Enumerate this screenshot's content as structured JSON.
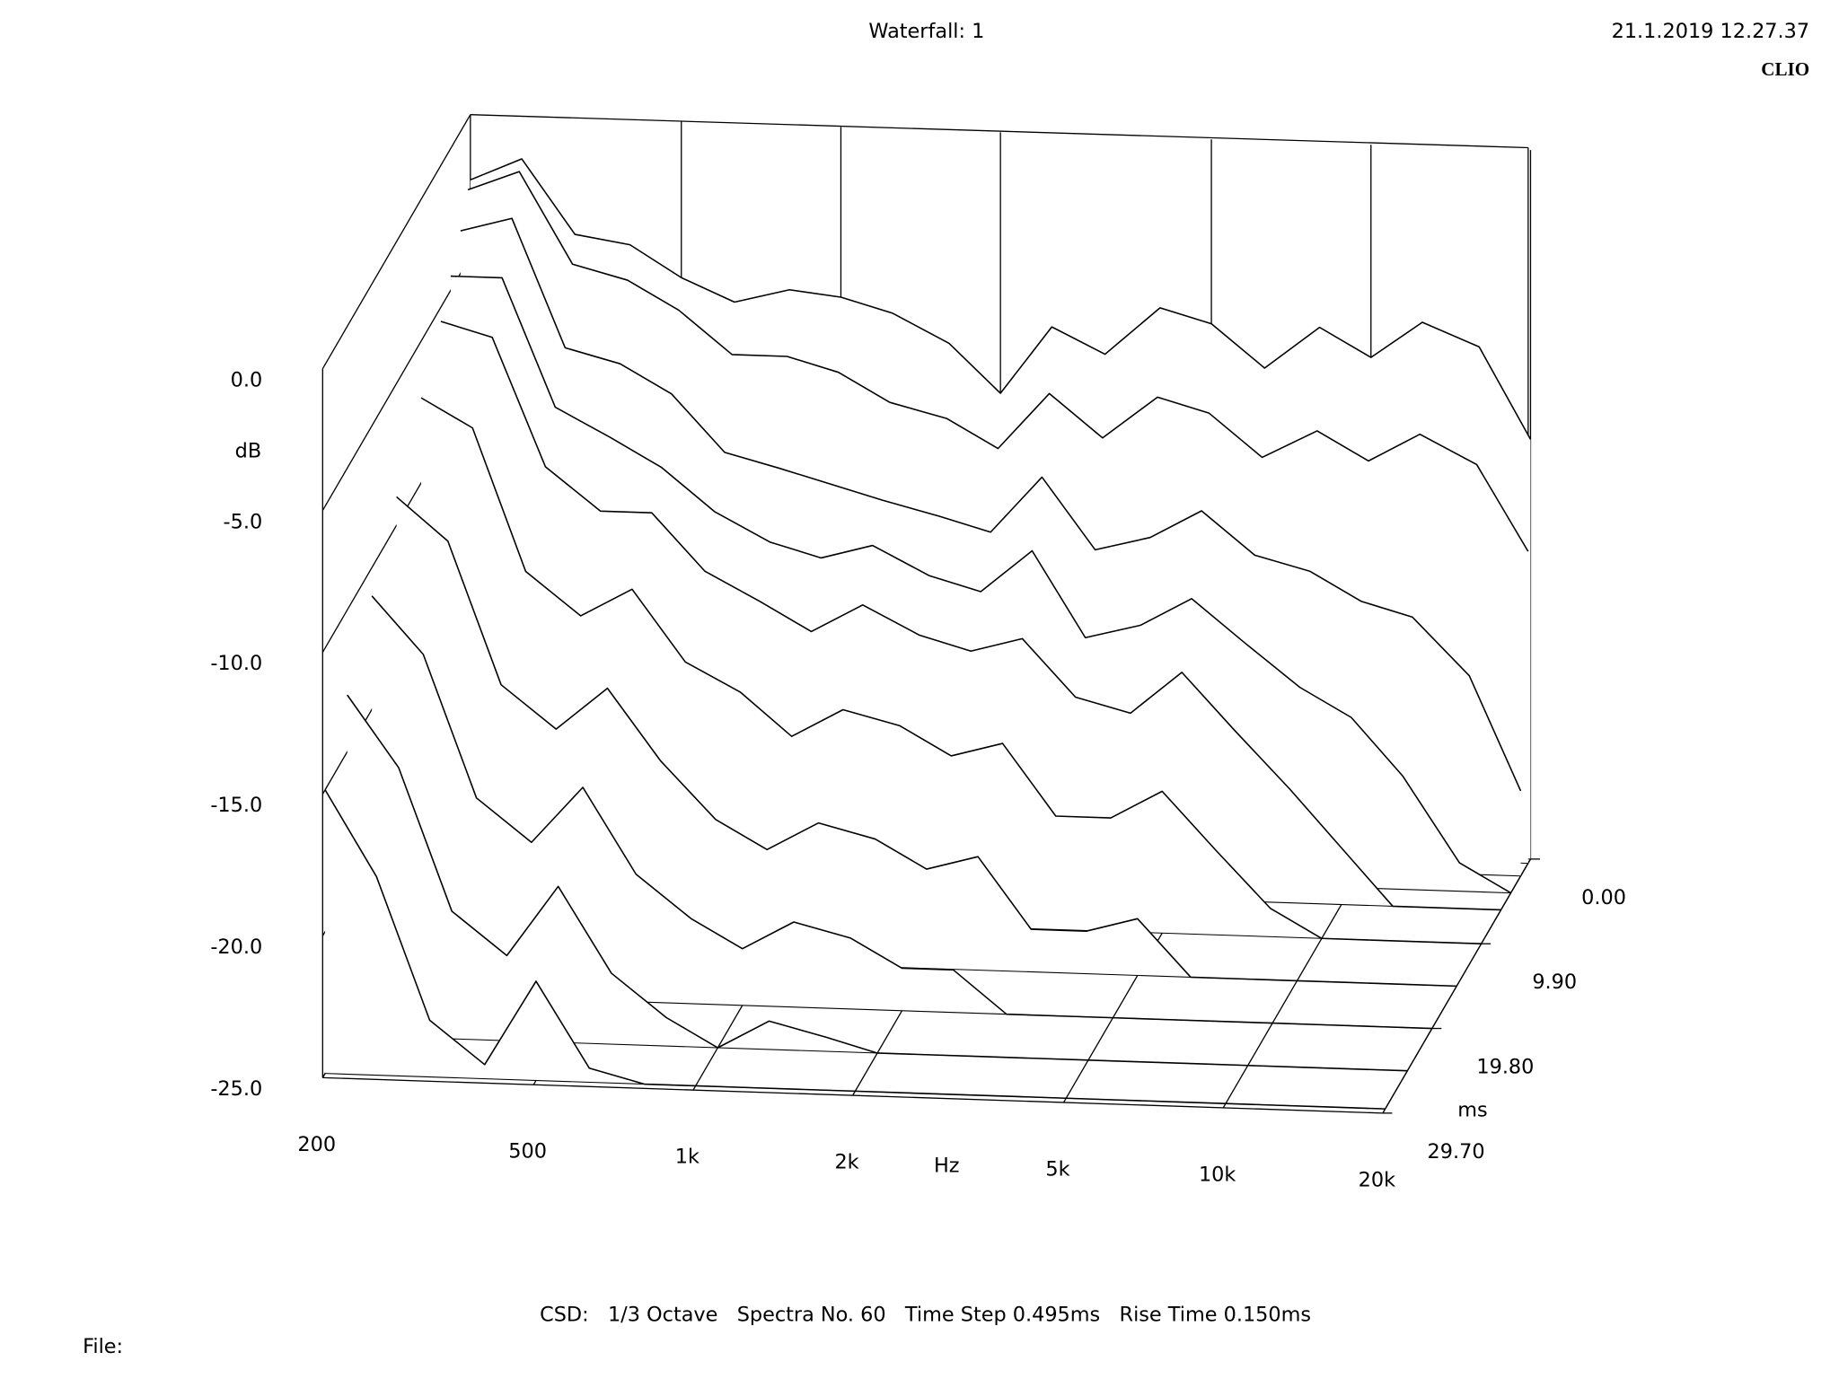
{
  "chart_data": {
    "type": "waterfall",
    "title": "Waterfall: 1",
    "timestamp": "21.1.2019 12.27.37",
    "brand": "CLIO",
    "y_label": "dB",
    "x_label": "Hz",
    "z_label": "ms",
    "footer": "CSD:   1/3 Octave   Spectra No. 60   Time Step 0.495ms   Rise Time 0.150ms",
    "file_label": "File:",
    "xscale": "log",
    "xlim": [
      200,
      20000
    ],
    "xticks": [
      200,
      500,
      {
        "value": 1000,
        "label": "1k"
      },
      {
        "value": 2000,
        "label": "2k"
      },
      {
        "value": 5000,
        "label": "5k"
      },
      {
        "value": 10000,
        "label": "10k"
      },
      {
        "value": 20000,
        "label": "20k"
      }
    ],
    "ylim": [
      -25,
      0
    ],
    "yticks": [
      {
        "value": 0,
        "label": "0.0"
      },
      {
        "value": -5,
        "label": "-5.0"
      },
      {
        "value": -10,
        "label": "-10.0"
      },
      {
        "value": -15,
        "label": "-15.0"
      },
      {
        "value": -20,
        "label": "-20.0"
      },
      {
        "value": -25,
        "label": "-25.0"
      }
    ],
    "zlim": [
      0,
      29.7
    ],
    "zticks": [
      {
        "value": 0,
        "label": "0.00"
      },
      {
        "value": 9.9,
        "label": "9.90"
      },
      {
        "value": 19.8,
        "label": "19.80"
      },
      {
        "value": 29.7,
        "label": "29.70"
      }
    ],
    "x": [
      200,
      250,
      315,
      400,
      500,
      630,
      800,
      1000,
      1250,
      1600,
      2000,
      2500,
      3150,
      4000,
      5000,
      6300,
      8000,
      10000,
      12500,
      16000,
      20000
    ],
    "z": [
      0,
      0.495,
      1.98,
      3.96,
      5.94,
      9.9,
      14.85,
      19.8,
      24.75,
      29.205
    ],
    "color": "#000000",
    "series": [
      {
        "values": [
          -2.3,
          -1.5,
          -4.1,
          -4.4,
          -5.5,
          -6.3,
          -5.8,
          -6.0,
          -6.5,
          -7.5,
          -9.2,
          -6.8,
          -7.7,
          -6.0,
          -6.5,
          -8.0,
          -6.5,
          -7.5,
          -6.2,
          -7.0,
          -10.2
        ]
      },
      {
        "values": [
          -2.5,
          -1.8,
          -5,
          -5.5,
          -6.5,
          -8,
          -8,
          -8.5,
          -9.5,
          -10,
          -11,
          -9,
          -10.5,
          -9,
          -9.5,
          -11,
          -10,
          -11,
          -10,
          -11,
          -14
        ]
      },
      {
        "values": [
          -3.5,
          -3,
          -7.5,
          -8,
          -9,
          -11,
          -11.5,
          -12,
          -12.5,
          -13,
          -13.5,
          -11.5,
          -14,
          -13.5,
          -12.5,
          -14,
          -14.5,
          -15.5,
          -16,
          -18,
          -22
        ]
      },
      {
        "values": [
          -4.5,
          -4.5,
          -9,
          -10,
          -11,
          -12.5,
          -13.5,
          -14,
          -13.5,
          -14.5,
          -15,
          -13.5,
          -16.5,
          -16,
          -15,
          -16.5,
          -18,
          -19,
          -21,
          -24,
          -25
        ]
      },
      {
        "values": [
          -5.5,
          -6,
          -10.5,
          -12,
          -12,
          -14,
          -15,
          -16,
          -15,
          -16,
          -16.5,
          -16,
          -18,
          -18.5,
          -17,
          -19,
          -21,
          -23,
          -25,
          -25,
          -25
        ]
      },
      {
        "values": [
          -7,
          -8,
          -13,
          -14.5,
          -13.5,
          -16,
          -17,
          -18.5,
          -17.5,
          -18,
          -19,
          -18.5,
          -21,
          -21,
          -20,
          -22,
          -24,
          -25,
          -25,
          -25,
          -25
        ]
      },
      {
        "values": [
          -9,
          -10.5,
          -15.5,
          -17,
          -15.5,
          -18,
          -20,
          -21,
          -20,
          -20.5,
          -21.5,
          -21,
          -23.5,
          -23.5,
          -23,
          -25,
          -25,
          -25,
          -25,
          -25,
          -25
        ]
      },
      {
        "values": [
          -11,
          -13,
          -18,
          -19.5,
          -17.5,
          -20.5,
          -22,
          -23,
          -22,
          -22.5,
          -23.5,
          -23.5,
          -25,
          -25,
          -25,
          -25,
          -25,
          -25,
          -25,
          -25,
          -25
        ]
      },
      {
        "values": [
          -13,
          -15.5,
          -20.5,
          -22,
          -19.5,
          -22.5,
          -24,
          -25,
          -24,
          -24.5,
          -25,
          -25,
          -25,
          -25,
          -25,
          -25,
          -25,
          -25,
          -25,
          -25,
          -25
        ]
      },
      {
        "values": [
          -15,
          -18,
          -23,
          -24.5,
          -21.5,
          -24.5,
          -25,
          -25,
          -25,
          -25,
          -25,
          -25,
          -25,
          -25,
          -25,
          -25,
          -25,
          -25,
          -25,
          -25,
          -25
        ]
      }
    ]
  }
}
